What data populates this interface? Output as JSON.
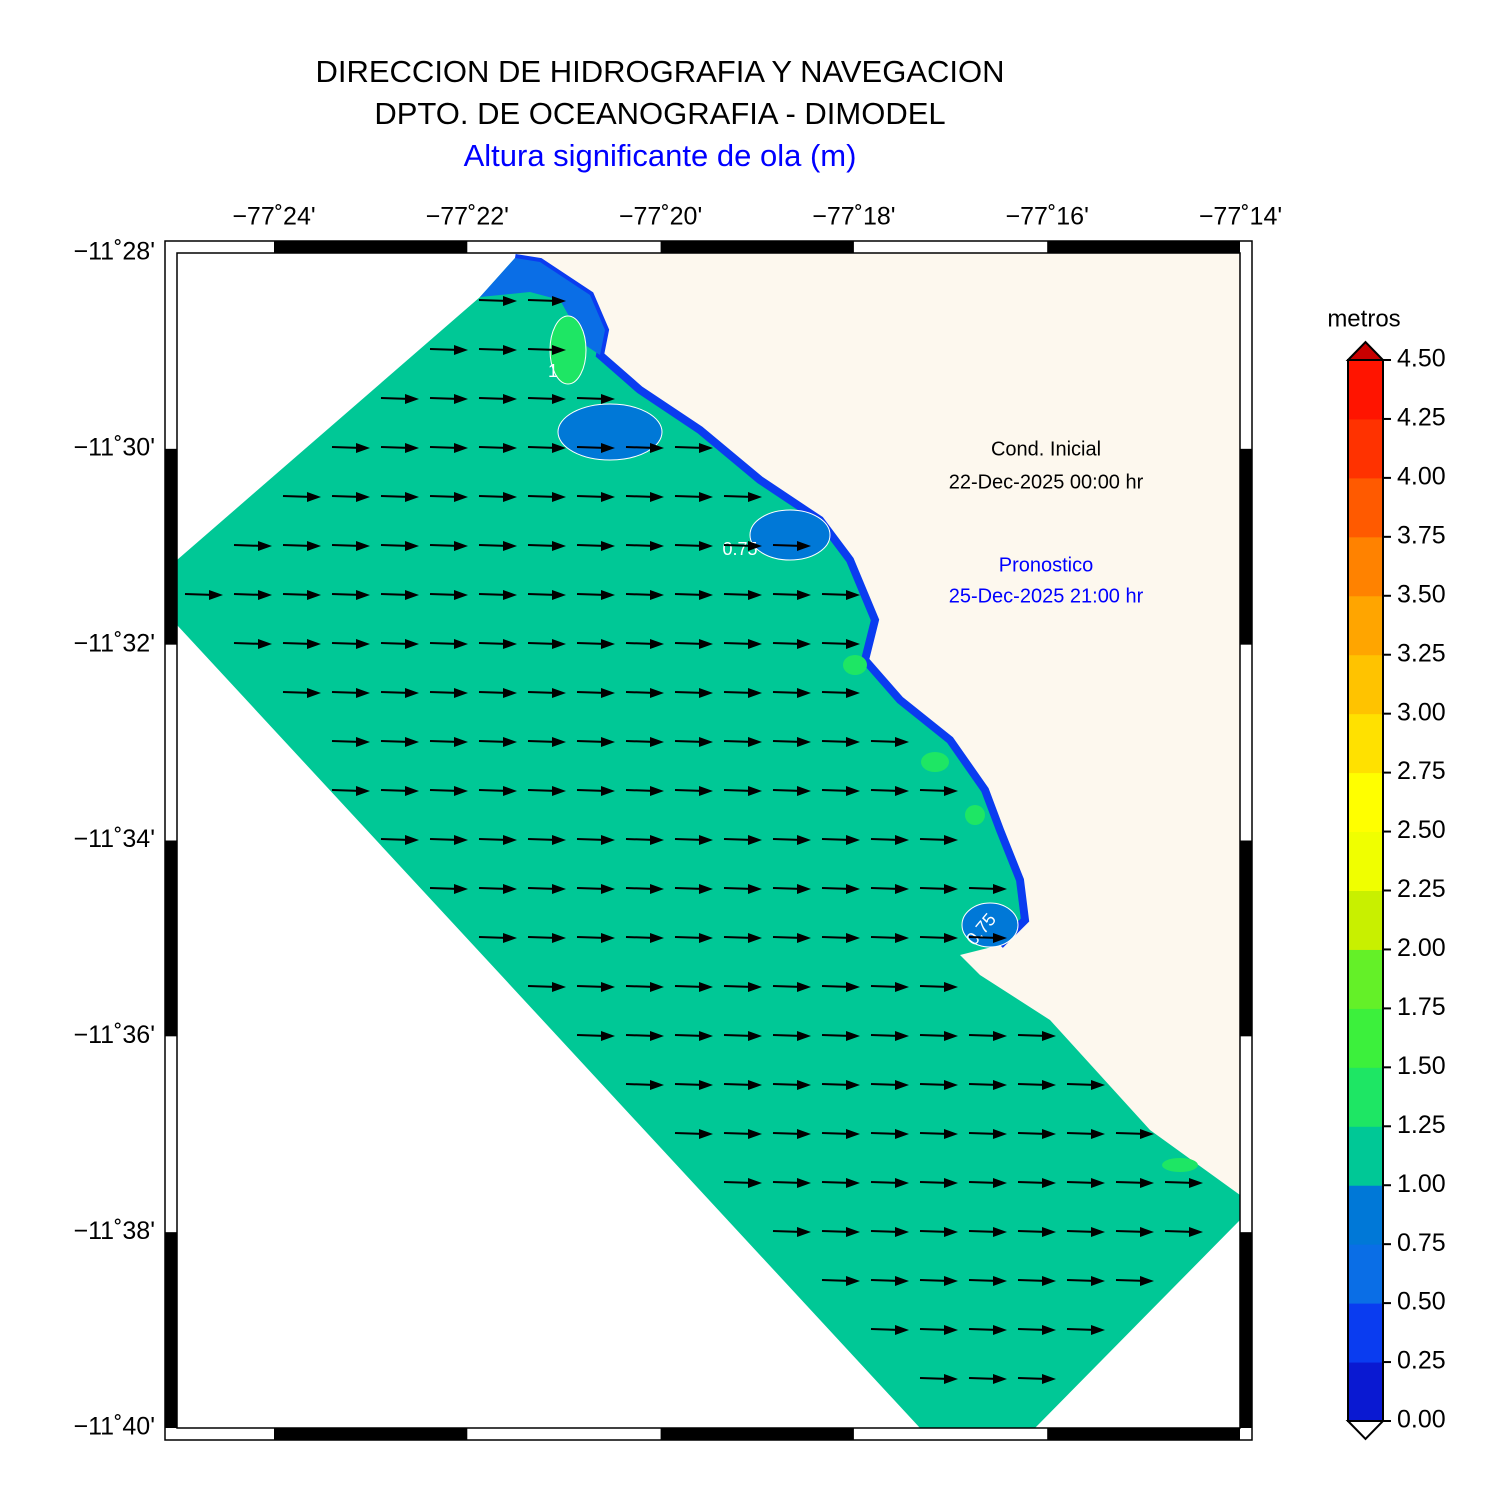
{
  "header": {
    "lines": [
      "DIRECCION DE HIDROGRAFIA Y NAVEGACION",
      "DPTO. DE OCEANOGRAFIA - DIMODEL"
    ],
    "subtitle": "Altura significante de ola (m)"
  },
  "map": {
    "x_ticks": [
      "−77˚24'",
      "−77˚22'",
      "−77˚20'",
      "−77˚18'",
      "−77˚16'",
      "−77˚14'"
    ],
    "y_ticks": [
      "−11˚28'",
      "−11˚30'",
      "−11˚32'",
      "−11˚34'",
      "−11˚36'",
      "−11˚38'",
      "−11˚40'"
    ],
    "initial": {
      "label": "Cond. Inicial",
      "date": "22-Dec-2025 00:00 hr"
    },
    "forecast": {
      "label": "Pronostico",
      "date": "25-Dec-2025 21:00 hr"
    },
    "contour_labels": [
      "1",
      "0.75",
      "0.75"
    ]
  },
  "colorbar": {
    "label": "metros",
    "ticks": [
      "0.00",
      "0.25",
      "0.50",
      "0.75",
      "1.00",
      "1.25",
      "1.50",
      "1.75",
      "2.00",
      "2.25",
      "2.50",
      "2.75",
      "3.00",
      "3.25",
      "3.50",
      "3.75",
      "4.00",
      "4.25",
      "4.50"
    ],
    "colors": [
      "#0a19d2",
      "#0a3cf0",
      "#0a6ee6",
      "#0078d7",
      "#00c896",
      "#1ee664",
      "#3cf03c",
      "#64f028",
      "#c8f000",
      "#f0ff00",
      "#ffff00",
      "#ffe100",
      "#ffc300",
      "#ffa500",
      "#ff8200",
      "#ff5a00",
      "#ff3200",
      "#ff1400",
      "#c80000"
    ]
  }
}
